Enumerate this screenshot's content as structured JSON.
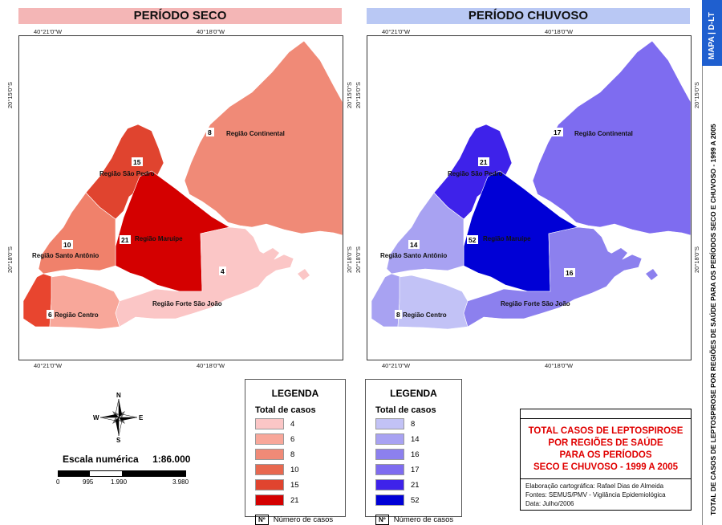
{
  "panels": {
    "dry": {
      "title": "PERÍODO SECO",
      "header_color": "#f4b6b6"
    },
    "wet": {
      "title": "PERÍODO CHUVOSO",
      "header_color": "#b9c8f4"
    }
  },
  "coords": {
    "lon_left": "40°21'0\"W",
    "lon_right": "40°18'0\"W",
    "lat_top": "20°15'0\"S",
    "lat_bottom": "20°18'0\"S"
  },
  "regions": {
    "continental": "Região Continental",
    "sao_pedro": "Região São Pedro",
    "maruipe": "Região Maruípe",
    "santo_antonio": "Região Santo Antônio",
    "centro": "Região Centro",
    "forte": "Região Forte São João"
  },
  "dry_cases": {
    "continental": "8",
    "sao_pedro": "15",
    "maruipe": "21",
    "santo_antonio": "10",
    "centro": "6",
    "forte": "4"
  },
  "wet_cases": {
    "continental": "17",
    "sao_pedro": "21",
    "maruipe": "52",
    "santo_antonio": "14",
    "centro": "8",
    "forte": "16"
  },
  "dry_colors": {
    "continental": "#f08a77",
    "sao_pedro": "#e0442f",
    "maruipe": "#d40000",
    "santo_antonio": "#f0816b",
    "centro": "#f8a79a",
    "forte": "#fbc6c6",
    "centro_west": "#e8452f"
  },
  "wet_colors": {
    "continental": "#7e6cf0",
    "sao_pedro": "#3e22ea",
    "maruipe": "#0000d6",
    "santo_antonio": "#a8a2f2",
    "centro": "#c2c2f6",
    "forte": "#8c80ee",
    "centro_west": "#a8a2f2"
  },
  "legend_dry": {
    "title": "LEGENDA",
    "subtitle": "Total de casos",
    "items": [
      {
        "label": "4",
        "color": "#fbc6c6"
      },
      {
        "label": "6",
        "color": "#f8a79a"
      },
      {
        "label": "8",
        "color": "#f08a77"
      },
      {
        "label": "10",
        "color": "#e8684f"
      },
      {
        "label": "15",
        "color": "#e0442f"
      },
      {
        "label": "21",
        "color": "#d40000"
      }
    ],
    "num_box": "Nº",
    "num_label": "Número de casos"
  },
  "legend_wet": {
    "title": "LEGENDA",
    "subtitle": "Total de casos",
    "items": [
      {
        "label": "8",
        "color": "#c2c2f6"
      },
      {
        "label": "14",
        "color": "#a8a2f2"
      },
      {
        "label": "16",
        "color": "#8c80ee"
      },
      {
        "label": "17",
        "color": "#7e6cf0"
      },
      {
        "label": "21",
        "color": "#3e22ea"
      },
      {
        "label": "52",
        "color": "#0000d6"
      }
    ],
    "num_box": "Nº",
    "num_label": "Número de casos"
  },
  "compass": {
    "n": "N",
    "s": "S",
    "e": "E",
    "w": "W"
  },
  "scale": {
    "label": "Escala numérica",
    "value": "1:86.000",
    "ticks": [
      "0",
      "995",
      "1.990",
      "3.980"
    ]
  },
  "info": {
    "title_lines": [
      "TOTAL CASOS DE LEPTOSPIROSE",
      "POR REGIÕES DE SAÚDE",
      "PARA OS PERÍODOS",
      "SECO E CHUVOSO - 1999 A 2005"
    ],
    "credits": [
      "Elaboração cartográfica: Rafael Dias de Almeida",
      "Fontes: SEMUS/PMV - Vigilância Epidemiológica",
      "Data: Julho/2006"
    ]
  },
  "side": {
    "badge": "MAPA | D-LT",
    "badge_color": "#1f5fcf",
    "title": "TOTAL DE CASOS DE LEPTOSPIROSE POR REGIÕES DE SAÚDE PARA OS PERÍODOS SECO E CHUVOSO - 1999 A 2005"
  }
}
